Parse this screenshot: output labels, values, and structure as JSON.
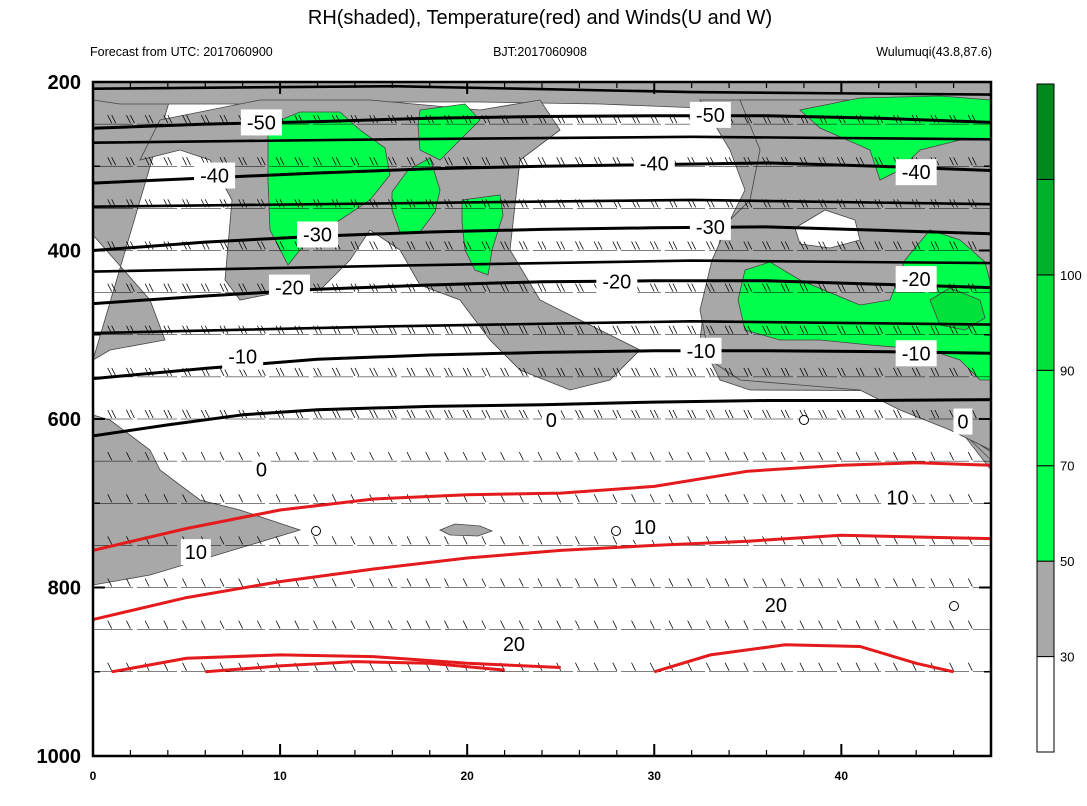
{
  "chart_data": {
    "type": "contour",
    "title": "RH(shaded), Temperature(red) and Winds(U and W)",
    "subtitle_left": "Forecast from UTC: 2017060900",
    "subtitle_center": "BJT:2017060908",
    "subtitle_right": "Wulumuqi(43.8,87.6)",
    "x_axis": {
      "range": [
        0,
        48
      ],
      "ticks": [
        0,
        10,
        20,
        30,
        40
      ],
      "tick_labels": [
        "0",
        "10",
        "20",
        "30",
        "40"
      ]
    },
    "y_axis": {
      "range": [
        1000,
        200
      ],
      "reversed": true,
      "ticks": [
        200,
        400,
        600,
        800,
        1000
      ],
      "tick_labels": [
        "200",
        "400",
        "600",
        "800",
        "1000"
      ]
    },
    "pressure_levels": [
      200,
      250,
      300,
      350,
      400,
      450,
      500,
      550,
      600,
      650,
      700,
      750,
      800,
      850,
      900
    ],
    "colorbar": {
      "levels": [
        "30",
        "50",
        "70",
        "90",
        "100"
      ],
      "colors": [
        "#ffffff",
        "#a8a8a8",
        "#00ff4c",
        "#00ff4c",
        "#00e13c",
        "#00b12c",
        "#008a1e"
      ]
    },
    "temperature_contours": [
      {
        "value": -50,
        "color": "#000000",
        "points": [
          [
            0,
            255
          ],
          [
            6,
            250
          ],
          [
            12,
            247
          ],
          [
            18,
            243
          ],
          [
            24,
            241
          ],
          [
            30,
            240
          ],
          [
            36,
            240
          ],
          [
            42,
            243
          ],
          [
            48,
            248
          ]
        ]
      },
      {
        "value": -40,
        "color": "#000000",
        "points": [
          [
            0,
            320
          ],
          [
            6,
            314
          ],
          [
            12,
            308
          ],
          [
            18,
            303
          ],
          [
            24,
            300
          ],
          [
            30,
            298
          ],
          [
            36,
            296
          ],
          [
            42,
            300
          ],
          [
            48,
            305
          ]
        ]
      },
      {
        "value": -30,
        "color": "#000000",
        "points": [
          [
            0,
            400
          ],
          [
            6,
            390
          ],
          [
            12,
            383
          ],
          [
            18,
            378
          ],
          [
            24,
            375
          ],
          [
            30,
            373
          ],
          [
            36,
            372
          ],
          [
            42,
            376
          ],
          [
            48,
            380
          ]
        ]
      },
      {
        "value": -20,
        "color": "#000000",
        "points": [
          [
            0,
            463
          ],
          [
            6,
            454
          ],
          [
            12,
            446
          ],
          [
            18,
            441
          ],
          [
            24,
            437
          ],
          [
            30,
            436
          ],
          [
            36,
            436
          ],
          [
            42,
            440
          ],
          [
            48,
            444
          ]
        ]
      },
      {
        "value": -10,
        "color": "#000000",
        "points": [
          [
            0,
            552
          ],
          [
            6,
            540
          ],
          [
            12,
            529
          ],
          [
            18,
            524
          ],
          [
            24,
            521
          ],
          [
            30,
            519
          ],
          [
            36,
            519
          ],
          [
            42,
            520
          ],
          [
            48,
            522
          ]
        ]
      },
      {
        "value": 0,
        "color": "#000000",
        "points": [
          [
            0,
            620
          ],
          [
            4,
            607
          ],
          [
            8,
            595
          ],
          [
            12,
            589
          ],
          [
            18,
            585
          ],
          [
            24,
            583
          ],
          [
            30,
            580
          ],
          [
            36,
            578
          ],
          [
            42,
            578
          ],
          [
            48,
            577
          ]
        ]
      },
      {
        "value": 10,
        "color": "#e41a1c",
        "points": [
          [
            0,
            756
          ],
          [
            5,
            730
          ],
          [
            10,
            708
          ],
          [
            15,
            695
          ],
          [
            20,
            690
          ],
          [
            25,
            688
          ],
          [
            30,
            680
          ],
          [
            35,
            662
          ],
          [
            40,
            655
          ],
          [
            44,
            652
          ],
          [
            48,
            655
          ]
        ]
      },
      {
        "value": 20,
        "color": "#e41a1c",
        "points": [
          [
            0,
            838
          ],
          [
            5,
            812
          ],
          [
            10,
            793
          ],
          [
            15,
            778
          ],
          [
            20,
            765
          ],
          [
            25,
            756
          ],
          [
            30,
            750
          ],
          [
            35,
            745
          ],
          [
            40,
            738
          ],
          [
            44,
            740
          ],
          [
            48,
            742
          ]
        ]
      }
    ],
    "rh_percent_min": 30,
    "rh_percent_max": 100,
    "wind_barbs": "present at all pressure levels"
  }
}
